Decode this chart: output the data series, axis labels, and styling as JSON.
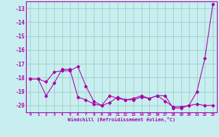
{
  "xlabel": "Windchill (Refroidissement éolien,°C)",
  "xlim": [
    -0.5,
    23.5
  ],
  "ylim": [
    -20.5,
    -12.5
  ],
  "yticks": [
    -20,
    -19,
    -18,
    -17,
    -16,
    -15,
    -14,
    -13
  ],
  "xticks": [
    0,
    1,
    2,
    3,
    4,
    5,
    6,
    7,
    8,
    9,
    10,
    11,
    12,
    13,
    14,
    15,
    16,
    17,
    18,
    19,
    20,
    21,
    22,
    23
  ],
  "line_color": "#aa00aa",
  "bg_color": "#c8eef0",
  "grid_color": "#90c8b8",
  "series1_x": [
    0,
    1,
    2,
    3,
    4,
    5,
    6,
    7,
    8,
    9,
    10,
    11,
    12,
    13,
    14,
    15,
    16,
    17,
    18,
    19,
    20,
    21,
    22,
    23
  ],
  "series1_y": [
    -18.1,
    -18.1,
    -19.3,
    -18.4,
    -17.4,
    -17.4,
    -19.4,
    -19.6,
    -19.9,
    -20.0,
    -19.8,
    -19.4,
    -19.6,
    -19.5,
    -19.3,
    -19.5,
    -19.3,
    -19.7,
    -20.1,
    -20.1,
    -20.0,
    -19.9,
    -20.0,
    -20.0
  ],
  "series2_x": [
    0,
    1,
    2,
    3,
    4,
    5,
    6,
    7,
    8,
    9,
    10,
    11,
    12,
    13,
    14,
    15,
    16,
    17,
    18,
    19,
    20,
    21,
    22,
    23
  ],
  "series2_y": [
    -18.1,
    -18.1,
    -18.3,
    -17.6,
    -17.5,
    -17.5,
    -17.2,
    -18.6,
    -19.7,
    -20.0,
    -19.3,
    -19.5,
    -19.6,
    -19.6,
    -19.4,
    -19.5,
    -19.3,
    -19.3,
    -20.2,
    -20.2,
    -20.0,
    -19.0,
    -16.6,
    -12.7
  ]
}
